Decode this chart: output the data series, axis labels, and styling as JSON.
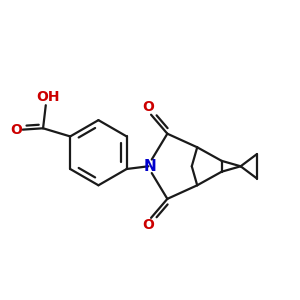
{
  "bg_color": "#ffffff",
  "bond_color": "#1a1a1a",
  "n_color": "#0000cc",
  "o_color": "#cc0000",
  "lw": 1.6,
  "figsize": [
    3.0,
    3.0
  ],
  "dpi": 100,
  "xlim": [
    -1.1,
    1.1
  ],
  "ylim": [
    -0.9,
    0.9
  ]
}
